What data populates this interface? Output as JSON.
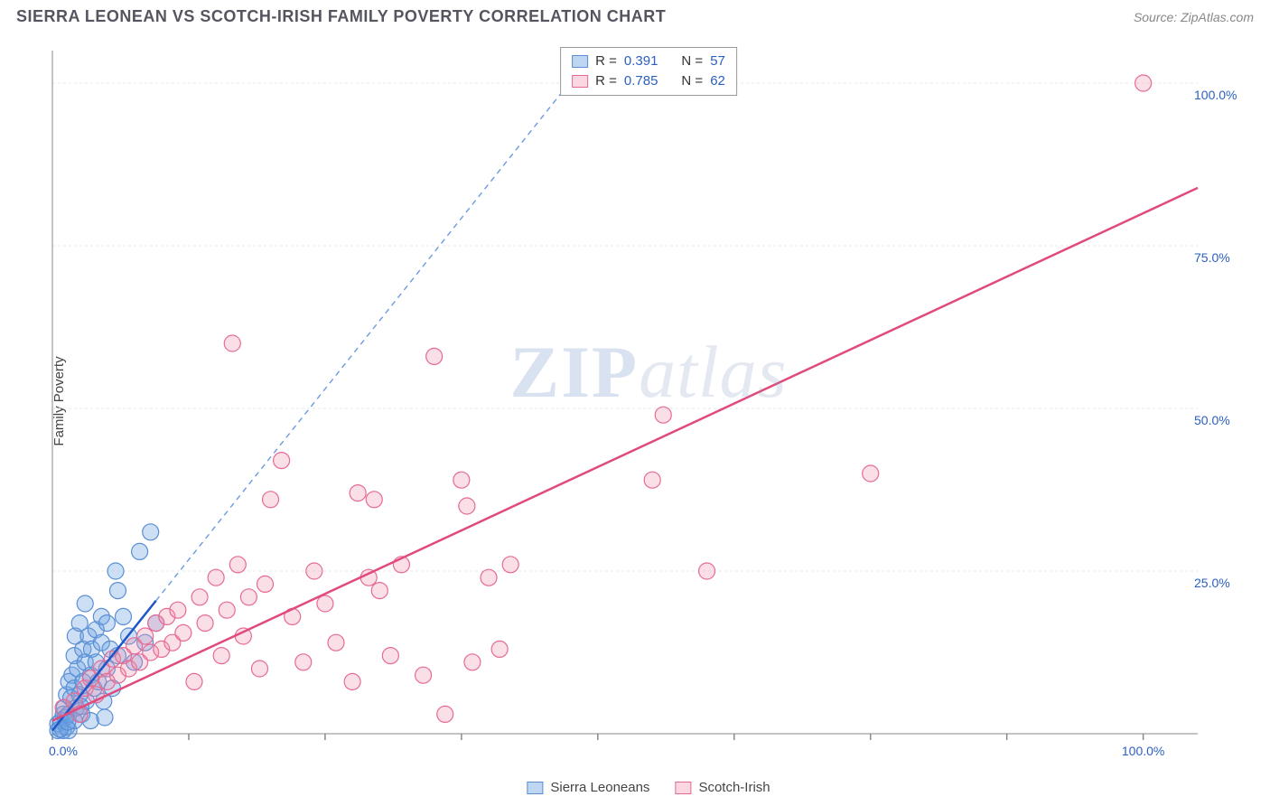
{
  "header": {
    "title": "SIERRA LEONEAN VS SCOTCH-IRISH FAMILY POVERTY CORRELATION CHART",
    "source_label": "Source: ",
    "source_name": "ZipAtlas.com"
  },
  "watermark": {
    "zip": "ZIP",
    "atlas": "atlas"
  },
  "ylabel": "Family Poverty",
  "chart": {
    "type": "scatter",
    "background_color": "#ffffff",
    "grid_color": "#e8e8e8",
    "axis_color": "#888888",
    "xlim": [
      0,
      105
    ],
    "ylim": [
      0,
      105
    ],
    "ytick_values": [
      25,
      50,
      75,
      100
    ],
    "ytick_labels": [
      "25.0%",
      "50.0%",
      "75.0%",
      "100.0%"
    ],
    "xtick_values": [
      0,
      12.5,
      25,
      37.5,
      50,
      62.5,
      75,
      87.5,
      100
    ],
    "x_origin_label": "0.0%",
    "x_end_label": "100.0%",
    "marker_radius": 9,
    "series": [
      {
        "name": "Sierra Leoneans",
        "color_fill": "rgba(110,164,226,0.35)",
        "color_stroke": "#5a8ed4",
        "R": "0.391",
        "N": "57",
        "trend": {
          "slope": 2.1,
          "intercept": 0.5,
          "solid_until_x": 9.5,
          "color_solid": "#1f56c7",
          "color_dash": "#6b9be0"
        },
        "points": [
          [
            0.5,
            0.5
          ],
          [
            0.5,
            1.5
          ],
          [
            0.8,
            2
          ],
          [
            1,
            3
          ],
          [
            1,
            0.5
          ],
          [
            1.1,
            4
          ],
          [
            1.2,
            2.5
          ],
          [
            1.3,
            6
          ],
          [
            1.3,
            1
          ],
          [
            1.5,
            8
          ],
          [
            1.5,
            3
          ],
          [
            1.5,
            0.5
          ],
          [
            1.7,
            5.5
          ],
          [
            1.8,
            9
          ],
          [
            2,
            2
          ],
          [
            2,
            7
          ],
          [
            2,
            12
          ],
          [
            2.1,
            15
          ],
          [
            2.2,
            4
          ],
          [
            2.3,
            10
          ],
          [
            2.5,
            17
          ],
          [
            2.5,
            6
          ],
          [
            2.7,
            3
          ],
          [
            2.8,
            13
          ],
          [
            2.8,
            8
          ],
          [
            3,
            11
          ],
          [
            3,
            20
          ],
          [
            3.1,
            5
          ],
          [
            3.3,
            15
          ],
          [
            3.5,
            9
          ],
          [
            3.5,
            2
          ],
          [
            3.6,
            13
          ],
          [
            3.8,
            7
          ],
          [
            4,
            16
          ],
          [
            4,
            11
          ],
          [
            4.2,
            8
          ],
          [
            4.5,
            14
          ],
          [
            4.5,
            18
          ],
          [
            4.7,
            5
          ],
          [
            5,
            17
          ],
          [
            5,
            10
          ],
          [
            5.3,
            13
          ],
          [
            5.5,
            7
          ],
          [
            5.8,
            25
          ],
          [
            6,
            12
          ],
          [
            6,
            22
          ],
          [
            6.5,
            18
          ],
          [
            7,
            15
          ],
          [
            7.5,
            11
          ],
          [
            8,
            28
          ],
          [
            8.5,
            14
          ],
          [
            9,
            31
          ],
          [
            9.5,
            17
          ],
          [
            0.7,
            0.7
          ],
          [
            1.4,
            1.8
          ],
          [
            2.6,
            4.2
          ],
          [
            4.8,
            2.5
          ]
        ]
      },
      {
        "name": "Scotch-Irish",
        "color_fill": "rgba(240,140,170,0.28)",
        "color_stroke": "#e66a94",
        "R": "0.785",
        "N": "62",
        "trend": {
          "slope": 0.78,
          "intercept": 2,
          "solid_until_x": 105,
          "color_solid": "#e04a7d"
        },
        "points": [
          [
            1,
            4
          ],
          [
            2,
            5
          ],
          [
            2.5,
            3
          ],
          [
            3,
            7
          ],
          [
            3.5,
            8.5
          ],
          [
            4,
            6
          ],
          [
            4.5,
            10
          ],
          [
            5,
            8
          ],
          [
            5.5,
            11.5
          ],
          [
            6,
            9
          ],
          [
            6.5,
            12
          ],
          [
            7,
            10
          ],
          [
            7.5,
            13.5
          ],
          [
            8,
            11
          ],
          [
            8.5,
            15
          ],
          [
            9,
            12.5
          ],
          [
            9.5,
            17
          ],
          [
            10,
            13
          ],
          [
            10.5,
            18
          ],
          [
            11,
            14
          ],
          [
            11.5,
            19
          ],
          [
            12,
            15.5
          ],
          [
            13,
            8
          ],
          [
            13.5,
            21
          ],
          [
            14,
            17
          ],
          [
            15,
            24
          ],
          [
            15.5,
            12
          ],
          [
            16,
            19
          ],
          [
            17,
            26
          ],
          [
            17.5,
            15
          ],
          [
            18,
            21
          ],
          [
            19,
            10
          ],
          [
            19.5,
            23
          ],
          [
            20,
            36
          ],
          [
            21,
            42
          ],
          [
            22,
            18
          ],
          [
            23,
            11
          ],
          [
            24,
            25
          ],
          [
            25,
            20
          ],
          [
            26,
            14
          ],
          [
            27.5,
            8
          ],
          [
            28,
            37
          ],
          [
            29,
            24
          ],
          [
            29.5,
            36
          ],
          [
            30,
            22
          ],
          [
            31,
            12
          ],
          [
            32,
            26
          ],
          [
            34,
            9
          ],
          [
            35,
            58
          ],
          [
            36,
            3
          ],
          [
            37.5,
            39
          ],
          [
            38,
            35
          ],
          [
            38.5,
            11
          ],
          [
            40,
            24
          ],
          [
            41,
            13
          ],
          [
            42,
            26
          ],
          [
            55,
            39
          ],
          [
            56,
            49
          ],
          [
            60,
            25
          ],
          [
            75,
            40
          ],
          [
            100,
            100
          ],
          [
            16.5,
            60
          ]
        ]
      }
    ]
  },
  "legend_top": {
    "R_label": "R =",
    "N_label": "N ="
  },
  "legend_bottom": {
    "s1": "Sierra Leoneans",
    "s2": "Scotch-Irish"
  }
}
